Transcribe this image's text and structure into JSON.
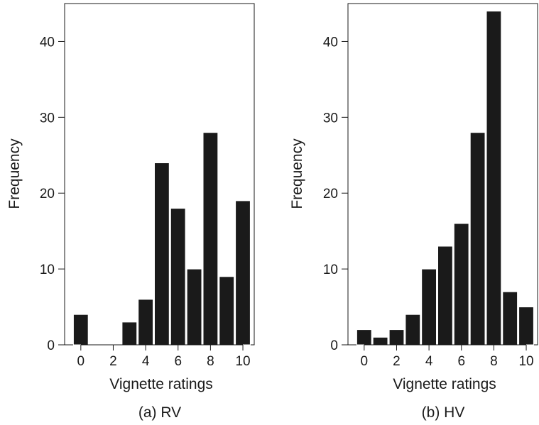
{
  "colors": {
    "bar_fill": "#1a1a1a",
    "bar_stroke": "#ffffff",
    "axis": "#1a1a1a",
    "background": "#ffffff"
  },
  "chart_data": [
    {
      "type": "bar",
      "caption": "(a) RV",
      "xlabel": "Vignette ratings",
      "ylabel": "Frequency",
      "x": [
        0,
        1,
        2,
        3,
        4,
        5,
        6,
        7,
        8,
        9,
        10
      ],
      "values": [
        4,
        0,
        0,
        3,
        6,
        24,
        18,
        10,
        28,
        9,
        19
      ],
      "xticks": [
        0,
        2,
        4,
        6,
        8,
        10
      ],
      "yticks": [
        0,
        10,
        20,
        30,
        40
      ],
      "xlim": [
        -1,
        10.7
      ],
      "ylim": [
        0,
        45
      ],
      "grid": false,
      "legend": "none"
    },
    {
      "type": "bar",
      "caption": "(b) HV",
      "xlabel": "Vignette ratings",
      "ylabel": "Frequency",
      "x": [
        0,
        1,
        2,
        3,
        4,
        5,
        6,
        7,
        8,
        9,
        10
      ],
      "values": [
        2,
        1,
        2,
        4,
        10,
        13,
        16,
        28,
        44,
        7,
        5
      ],
      "xticks": [
        0,
        2,
        4,
        6,
        8,
        10
      ],
      "yticks": [
        0,
        10,
        20,
        30,
        40
      ],
      "xlim": [
        -1,
        10.7
      ],
      "ylim": [
        0,
        45
      ],
      "grid": false,
      "legend": "none"
    }
  ]
}
